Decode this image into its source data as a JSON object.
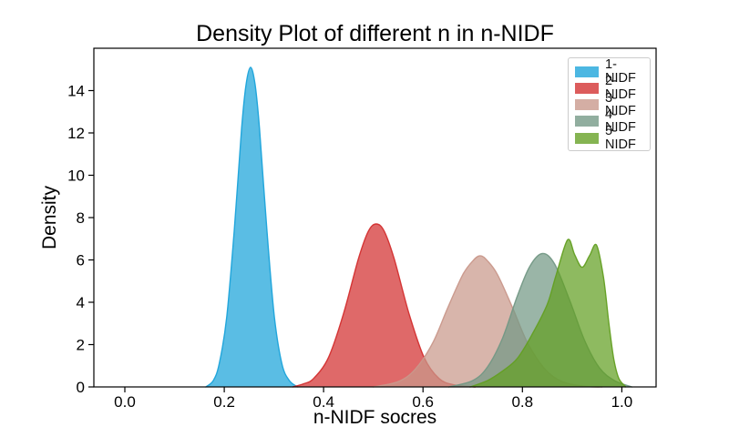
{
  "chart_data": {
    "type": "area",
    "title": "Density Plot of different n in n-NIDF",
    "xlabel": "n-NIDF socres",
    "ylabel": "Density",
    "xlim": [
      -0.0623,
      1.069
    ],
    "ylim": [
      0,
      16
    ],
    "xticks": [
      0.0,
      0.2,
      0.4,
      0.6,
      0.8,
      1.0
    ],
    "xtick_labels": [
      "0.0",
      "0.2",
      "0.4",
      "0.6",
      "0.8",
      "1.0"
    ],
    "yticks": [
      0,
      2,
      4,
      6,
      8,
      10,
      12,
      14
    ],
    "ytick_labels": [
      "0",
      "2",
      "4",
      "6",
      "8",
      "10",
      "12",
      "14"
    ],
    "grid": false,
    "legend_position": "upper-right",
    "series": [
      {
        "name": "1-NIDF",
        "color": "#1ba3da",
        "fill_opacity": 0.72,
        "peak_x": 0.253,
        "peak_density": 15.1,
        "points": [
          [
            0.163,
            0.0
          ],
          [
            0.178,
            0.3
          ],
          [
            0.19,
            1.1
          ],
          [
            0.205,
            3.3
          ],
          [
            0.22,
            7.35
          ],
          [
            0.235,
            12.2
          ],
          [
            0.244,
            14.3
          ],
          [
            0.253,
            15.1
          ],
          [
            0.262,
            14.3
          ],
          [
            0.271,
            12.2
          ],
          [
            0.286,
            7.35
          ],
          [
            0.301,
            3.3
          ],
          [
            0.316,
            1.1
          ],
          [
            0.331,
            0.3
          ],
          [
            0.348,
            0.0
          ]
        ]
      },
      {
        "name": "2-NIDF",
        "color": "#d32f2f",
        "fill_opacity": 0.72,
        "peak_x": 0.506,
        "peak_density": 7.7,
        "points": [
          [
            0.338,
            0.0
          ],
          [
            0.36,
            0.15
          ],
          [
            0.38,
            0.4
          ],
          [
            0.41,
            1.4
          ],
          [
            0.44,
            3.45
          ],
          [
            0.47,
            6.05
          ],
          [
            0.49,
            7.35
          ],
          [
            0.506,
            7.7
          ],
          [
            0.522,
            7.35
          ],
          [
            0.542,
            6.05
          ],
          [
            0.572,
            3.45
          ],
          [
            0.602,
            1.4
          ],
          [
            0.632,
            0.4
          ],
          [
            0.662,
            0.1
          ],
          [
            0.705,
            0.0
          ]
        ]
      },
      {
        "name": "3-NIDF",
        "color": "#c9988b",
        "fill_opacity": 0.72,
        "peak_x": 0.715,
        "peak_density": 6.2,
        "points": [
          [
            0.5,
            0.0
          ],
          [
            0.55,
            0.25
          ],
          [
            0.585,
            0.85
          ],
          [
            0.62,
            2.1
          ],
          [
            0.65,
            3.75
          ],
          [
            0.68,
            5.3
          ],
          [
            0.7,
            5.95
          ],
          [
            0.715,
            6.2
          ],
          [
            0.73,
            5.95
          ],
          [
            0.75,
            5.3
          ],
          [
            0.78,
            3.75
          ],
          [
            0.81,
            2.1
          ],
          [
            0.845,
            0.85
          ],
          [
            0.88,
            0.25
          ],
          [
            0.925,
            0.03
          ],
          [
            0.96,
            0.0
          ]
        ]
      },
      {
        "name": "4-NIDF",
        "color": "#739885",
        "fill_opacity": 0.72,
        "peak_x": 0.84,
        "peak_density": 6.3,
        "points": [
          [
            0.652,
            0.0
          ],
          [
            0.7,
            0.3
          ],
          [
            0.73,
            0.95
          ],
          [
            0.76,
            2.3
          ],
          [
            0.79,
            4.3
          ],
          [
            0.815,
            5.7
          ],
          [
            0.84,
            6.3
          ],
          [
            0.865,
            5.8
          ],
          [
            0.895,
            4.1
          ],
          [
            0.925,
            2.2
          ],
          [
            0.955,
            0.9
          ],
          [
            0.985,
            0.3
          ],
          [
            1.02,
            0.0
          ]
        ]
      },
      {
        "name": "5-NIDF",
        "color": "#639f22",
        "fill_opacity": 0.72,
        "peak_x": 0.891,
        "peak_density": 6.95,
        "bimodal": true,
        "second_peak_x": 0.949,
        "second_peak_density": 6.7,
        "valley_x": 0.92,
        "valley_density": 5.65,
        "points": [
          [
            0.695,
            0.0
          ],
          [
            0.73,
            0.3
          ],
          [
            0.76,
            0.75
          ],
          [
            0.79,
            1.35
          ],
          [
            0.82,
            2.5
          ],
          [
            0.85,
            3.9
          ],
          [
            0.868,
            5.3
          ],
          [
            0.891,
            6.95
          ],
          [
            0.905,
            6.25
          ],
          [
            0.92,
            5.65
          ],
          [
            0.935,
            6.2
          ],
          [
            0.949,
            6.7
          ],
          [
            0.963,
            5.2
          ],
          [
            0.974,
            3.0
          ],
          [
            0.984,
            1.3
          ],
          [
            0.994,
            0.4
          ],
          [
            1.008,
            0.0
          ]
        ]
      }
    ]
  }
}
